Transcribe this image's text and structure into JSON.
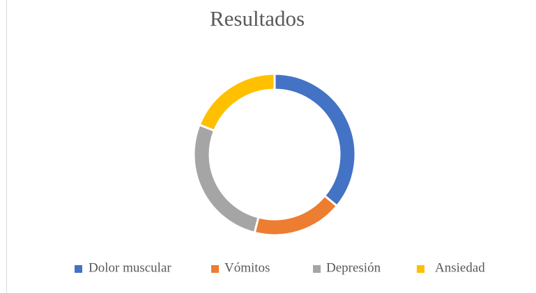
{
  "chart_data": {
    "type": "donut",
    "title": "Resultados",
    "categories": [
      "Dolor muscular",
      "Vómitos",
      "Depresión",
      "Ansiedad"
    ],
    "values": [
      36,
      18,
      27,
      19
    ],
    "colors": [
      "#4472c4",
      "#ed7d31",
      "#a5a5a5",
      "#ffc000"
    ],
    "legend": "bottom"
  }
}
